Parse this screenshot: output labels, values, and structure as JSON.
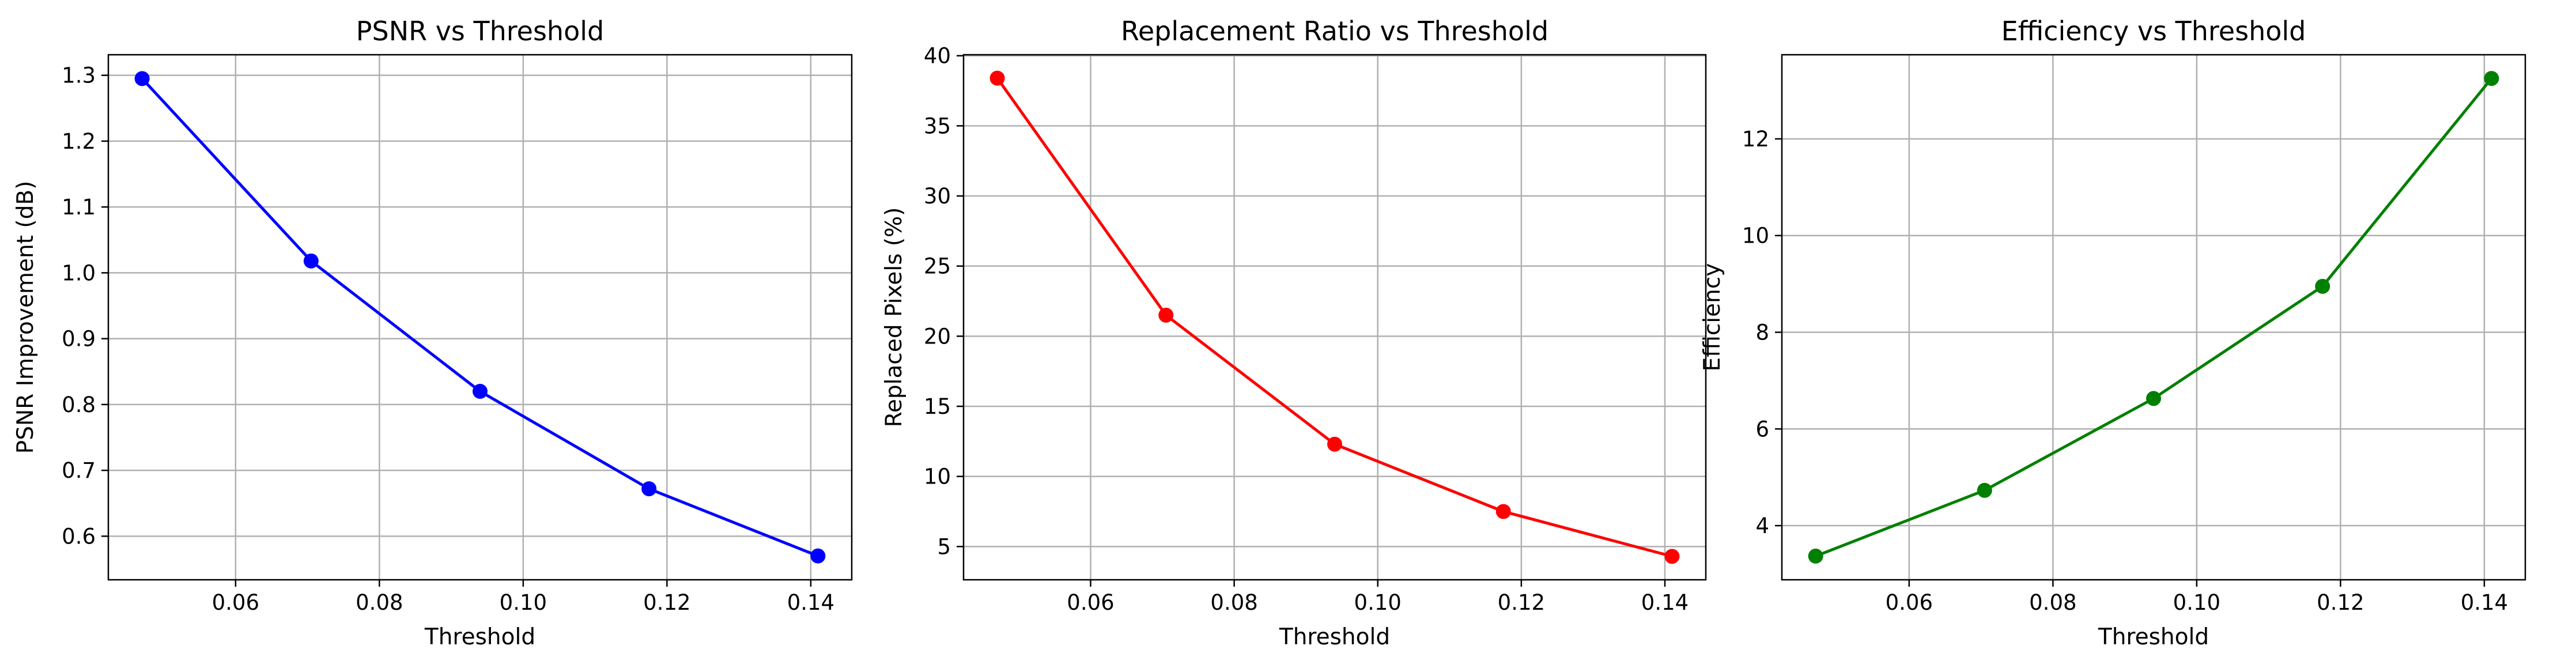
{
  "chart_data": [
    {
      "type": "line",
      "title": "PSNR vs Threshold",
      "xlabel": "Threshold",
      "ylabel": "PSNR Improvement (dB)",
      "x": [
        0.047,
        0.0705,
        0.094,
        0.1175,
        0.141
      ],
      "series": [
        {
          "values": [
            1.295,
            1.018,
            0.82,
            0.672,
            0.57
          ],
          "color": "#0000ff"
        }
      ],
      "xlim": [
        0.0423,
        0.1457
      ],
      "ylim": [
        0.5338,
        1.3312
      ],
      "xticks": [
        0.06,
        0.08,
        0.1,
        0.12,
        0.14
      ],
      "xtick_labels": [
        "0.06",
        "0.08",
        "0.10",
        "0.12",
        "0.14"
      ],
      "yticks": [
        0.6,
        0.7,
        0.8,
        0.9,
        1.0,
        1.1,
        1.2,
        1.3
      ],
      "ytick_labels": [
        "0.6",
        "0.7",
        "0.8",
        "0.9",
        "1.0",
        "1.1",
        "1.2",
        "1.3"
      ],
      "grid": true
    },
    {
      "type": "line",
      "title": "Replacement Ratio vs Threshold",
      "xlabel": "Threshold",
      "ylabel": "Replaced Pixels (%)",
      "x": [
        0.047,
        0.0705,
        0.094,
        0.1175,
        0.141
      ],
      "series": [
        {
          "values": [
            38.4,
            21.5,
            12.3,
            7.5,
            4.3
          ],
          "color": "#ff0000"
        }
      ],
      "xlim": [
        0.0423,
        0.1457
      ],
      "ylim": [
        2.63,
        40.07
      ],
      "xticks": [
        0.06,
        0.08,
        0.1,
        0.12,
        0.14
      ],
      "xtick_labels": [
        "0.06",
        "0.08",
        "0.10",
        "0.12",
        "0.14"
      ],
      "yticks": [
        5,
        10,
        15,
        20,
        25,
        30,
        35,
        40
      ],
      "ytick_labels": [
        "5",
        "10",
        "15",
        "20",
        "25",
        "30",
        "35",
        "40"
      ],
      "grid": true
    },
    {
      "type": "line",
      "title": "Efficiency vs Threshold",
      "xlabel": "Threshold",
      "ylabel": "Efficiency",
      "x": [
        0.047,
        0.0705,
        0.094,
        0.1175,
        0.141
      ],
      "series": [
        {
          "values": [
            3.37,
            4.73,
            6.63,
            8.95,
            13.25
          ],
          "color": "#008000"
        }
      ],
      "xlim": [
        0.0423,
        0.1457
      ],
      "ylim": [
        2.88,
        13.74
      ],
      "xticks": [
        0.06,
        0.08,
        0.1,
        0.12,
        0.14
      ],
      "xtick_labels": [
        "0.06",
        "0.08",
        "0.10",
        "0.12",
        "0.14"
      ],
      "yticks": [
        4,
        6,
        8,
        10,
        12
      ],
      "ytick_labels": [
        "4",
        "6",
        "8",
        "10",
        "12"
      ],
      "grid": true
    }
  ]
}
